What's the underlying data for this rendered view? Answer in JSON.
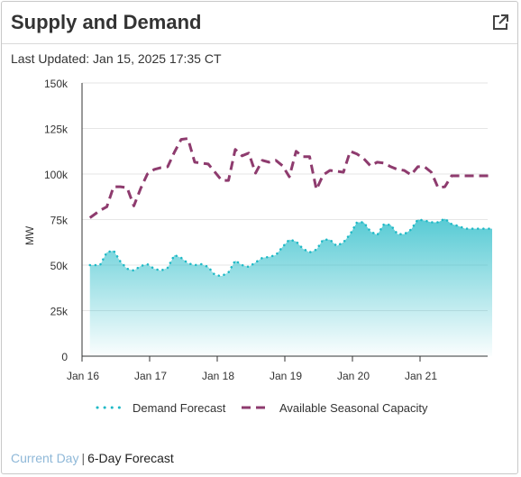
{
  "header": {
    "title": "Supply and Demand",
    "external_icon": "external-link-icon"
  },
  "last_updated": "Last Updated: Jan 15, 2025 17:35 CT",
  "footer": {
    "current_day": "Current Day",
    "separator": "|",
    "six_day": "6-Day Forecast"
  },
  "colors": {
    "demand": "#1fb9c6",
    "capacity": "#8e3b6e",
    "text": "#333333"
  },
  "chart_data": {
    "type": "line",
    "ylabel": "MW",
    "xlabel": "",
    "ylim": [
      0,
      150000
    ],
    "yticks": [
      0,
      25000,
      50000,
      75000,
      100000,
      125000,
      150000
    ],
    "ytick_labels": [
      "0",
      "25k",
      "50k",
      "75k",
      "100k",
      "125k",
      "150k"
    ],
    "xlim": [
      0,
      6
    ],
    "xticks": [
      0,
      1,
      2,
      3,
      4,
      5
    ],
    "xtick_labels": [
      "Jan 16",
      "Jan 17",
      "Jan 18",
      "Jan 19",
      "Jan 20",
      "Jan 21"
    ],
    "x_unit": "days from Jan 16",
    "grid": true,
    "legend": "bottom",
    "series": [
      {
        "name": "Demand Forecast",
        "style": "dotted-area",
        "x": [
          0.05,
          0.2,
          0.3,
          0.4,
          0.5,
          0.6,
          0.7,
          0.8,
          0.9,
          1.0,
          1.1,
          1.2,
          1.3,
          1.4,
          1.5,
          1.6,
          1.7,
          1.8,
          1.9,
          2.0,
          2.1,
          2.2,
          2.3,
          2.4,
          2.5,
          2.6,
          2.7,
          2.8,
          2.9,
          3.0,
          3.1,
          3.2,
          3.3,
          3.4,
          3.5,
          3.6,
          3.7,
          3.8,
          3.9,
          4.0,
          4.1,
          4.2,
          4.3,
          4.4,
          4.5,
          4.6,
          4.7,
          4.8,
          4.9,
          5.0,
          5.1,
          5.2,
          5.3,
          5.4,
          5.5,
          5.6,
          5.7,
          5.8,
          5.9,
          6.0
        ],
        "values": [
          50000,
          50000,
          57000,
          58000,
          52000,
          48000,
          47000,
          49500,
          50500,
          48000,
          47000,
          48500,
          55500,
          54000,
          51000,
          50000,
          50500,
          49000,
          44500,
          44000,
          46000,
          52500,
          50000,
          49000,
          51500,
          54000,
          54500,
          55500,
          60000,
          64000,
          63000,
          59000,
          57000,
          58500,
          64000,
          64000,
          60500,
          62500,
          67000,
          73500,
          73500,
          68500,
          66500,
          72500,
          72000,
          67000,
          67000,
          69500,
          75000,
          74500,
          73500,
          73500,
          75500,
          72500,
          71500,
          70000,
          70000,
          70000,
          70000,
          70000
        ]
      },
      {
        "name": "Available Seasonal Capacity",
        "style": "dashed",
        "x": [
          0.05,
          0.2,
          0.3,
          0.4,
          0.5,
          0.6,
          0.7,
          0.8,
          0.9,
          1.0,
          1.1,
          1.2,
          1.3,
          1.4,
          1.5,
          1.6,
          1.7,
          1.8,
          1.9,
          2.0,
          2.1,
          2.2,
          2.3,
          2.4,
          2.5,
          2.6,
          2.7,
          2.8,
          2.9,
          3.0,
          3.1,
          3.2,
          3.3,
          3.4,
          3.5,
          3.6,
          3.7,
          3.8,
          3.9,
          4.0,
          4.1,
          4.2,
          4.3,
          4.4,
          4.5,
          4.6,
          4.7,
          4.8,
          4.9,
          5.0,
          5.1,
          5.2,
          5.3,
          5.4,
          5.5,
          5.6,
          5.7,
          5.8,
          5.9,
          6.0
        ],
        "values": [
          76000,
          80000,
          82000,
          93000,
          93000,
          92500,
          82500,
          92000,
          100000,
          102500,
          103500,
          104000,
          112000,
          119000,
          119500,
          106500,
          106000,
          105500,
          101000,
          96500,
          96500,
          113500,
          110000,
          111500,
          100500,
          107500,
          106500,
          107500,
          104500,
          98500,
          112500,
          109500,
          109500,
          91500,
          99500,
          102000,
          101500,
          101000,
          112500,
          111000,
          108500,
          104500,
          106500,
          106000,
          104000,
          102500,
          102000,
          99500,
          104000,
          104000,
          101000,
          92500,
          93000,
          99000,
          99000,
          99000,
          99000,
          99000,
          99000,
          99000
        ]
      }
    ]
  }
}
